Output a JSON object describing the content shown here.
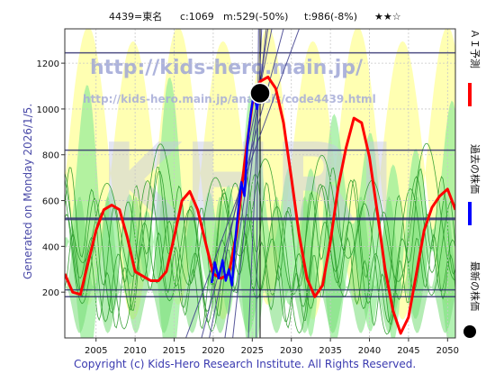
{
  "header": {
    "code_name": "4439=東名",
    "current": "c:1069",
    "m_value": "m:529(-50%)",
    "t_value": "t:986(-8%)",
    "stars": "★★☆"
  },
  "side_label": "Generated on Monday 2026/1/5.",
  "watermarks": {
    "url_main": "http://kids-hero.main.jp/",
    "url_sub": "http://kids-hero.main.jp/analysis/code4439.html",
    "big": "KHRI"
  },
  "legend": {
    "ai_forecast": "ＡＩ予測",
    "past_price": "過去の株価",
    "latest_price": "最新の株価"
  },
  "copyright": "Copyright (c) Kids-Hero Research Institute. All Rights Reserved.",
  "colors": {
    "ai_forecast": "#ff0000",
    "past_price": "#0000ff",
    "latest_price": "#000000",
    "band_green": "#99ee99",
    "band_yellow": "#ffffaa",
    "hline": "#303070",
    "trend": "#3a3a8a"
  },
  "chart_data": {
    "type": "line",
    "xlim": [
      2001,
      2051
    ],
    "ylim": [
      0,
      1350
    ],
    "x_ticks": [
      2005,
      2010,
      2015,
      2020,
      2025,
      2030,
      2035,
      2040,
      2045,
      2050
    ],
    "y_ticks": [
      200,
      400,
      600,
      800,
      1000,
      1200
    ],
    "grid": true,
    "series": [
      {
        "name": "ＡＩ予測",
        "color": "#ff0000",
        "x": [
          2001,
          2002,
          2003,
          2004,
          2005,
          2006,
          2007,
          2008,
          2009,
          2010,
          2011,
          2012,
          2013,
          2014,
          2015,
          2016,
          2017,
          2018,
          2019,
          2020,
          2021,
          2022,
          2023,
          2024,
          2025,
          2026,
          2027,
          2028,
          2029,
          2030,
          2031,
          2032,
          2033,
          2034,
          2035,
          2036,
          2037,
          2038,
          2039,
          2040,
          2041,
          2042,
          2043,
          2044,
          2045,
          2046,
          2047,
          2048,
          2049,
          2050,
          2051
        ],
        "y": [
          280,
          200,
          190,
          330,
          470,
          560,
          580,
          560,
          440,
          290,
          270,
          250,
          250,
          290,
          440,
          600,
          640,
          560,
          420,
          280,
          260,
          280,
          460,
          760,
          1020,
          1120,
          1140,
          1090,
          940,
          700,
          450,
          260,
          180,
          230,
          420,
          660,
          830,
          960,
          940,
          790,
          550,
          300,
          120,
          20,
          90,
          280,
          470,
          570,
          620,
          650,
          560
        ]
      },
      {
        "name": "過去の株価",
        "color": "#0000ff",
        "x": [
          2019.8,
          2020.2,
          2020.7,
          2021.2,
          2021.6,
          2022.0,
          2022.4,
          2022.8,
          2023.2,
          2023.6,
          2024.0,
          2024.4,
          2024.8,
          2025.2,
          2025.6,
          2026.0
        ],
        "y": [
          240,
          330,
          260,
          340,
          250,
          300,
          230,
          420,
          560,
          680,
          620,
          860,
          980,
          1070,
          1000,
          1069
        ]
      }
    ],
    "latest_point": {
      "x": 2026.0,
      "y": 1069
    },
    "horizontal_lines": [
      180,
      210,
      520,
      820,
      1245
    ],
    "vertical_lines": [
      2026.0
    ]
  }
}
